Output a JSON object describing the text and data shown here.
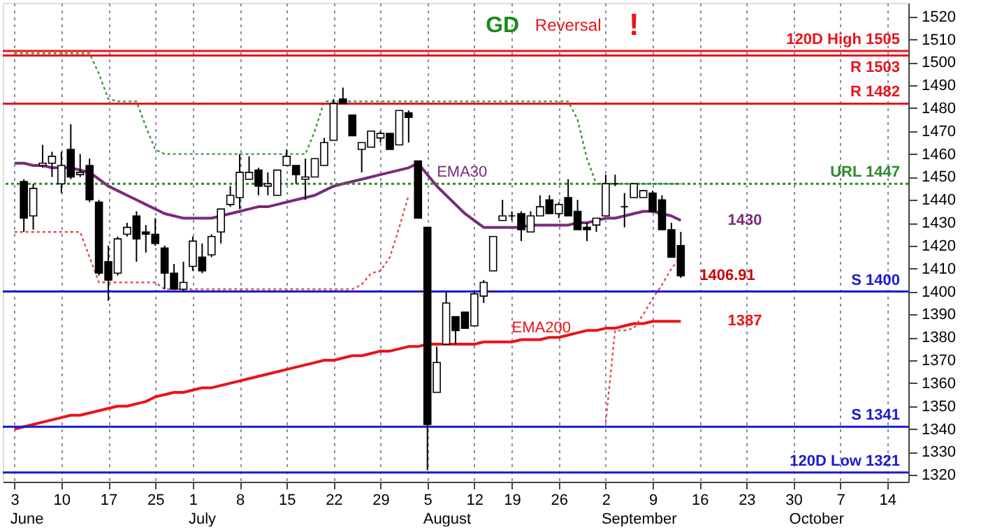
{
  "chart_data": {
    "type": "candlestick",
    "categories": [
      "3",
      null,
      null,
      null,
      null,
      "10",
      null,
      null,
      null,
      null,
      "17",
      null,
      null,
      null,
      null,
      "25",
      null,
      null,
      null,
      "1",
      null,
      null,
      null,
      null,
      "8",
      null,
      null,
      null,
      null,
      "15",
      null,
      null,
      null,
      null,
      "22",
      null,
      null,
      null,
      null,
      "29",
      null,
      null,
      null,
      null,
      "5",
      null,
      null,
      null,
      null,
      "12",
      null,
      null,
      null,
      "19",
      null,
      null,
      null,
      null,
      "26",
      null,
      null,
      null,
      null,
      "2",
      null,
      null,
      null,
      null,
      "9",
      null,
      null,
      null,
      null,
      "16",
      null,
      null,
      null,
      null,
      "23",
      null,
      null,
      null,
      null,
      "30",
      null,
      null,
      null,
      null,
      "7",
      null,
      null,
      null,
      null,
      "14",
      null
    ],
    "ohlc": [
      null,
      [
        1448,
        1449,
        1426,
        1432
      ],
      [
        1433,
        1447,
        1427,
        1445
      ],
      [
        1455,
        1464,
        1454,
        1456
      ],
      [
        1456,
        1461,
        1450,
        1459
      ],
      [
        1447,
        1461,
        1443,
        1455
      ],
      [
        1462,
        1473,
        1449,
        1450
      ],
      [
        1451,
        1460,
        1450,
        1452
      ],
      [
        1455,
        1458,
        1439,
        1440
      ],
      [
        1439,
        1440,
        1407,
        1408
      ],
      [
        1413,
        1420,
        1396,
        1405
      ],
      [
        1408,
        1424,
        1407,
        1423
      ],
      [
        1425,
        1430,
        1424,
        1428
      ],
      [
        1433,
        1435,
        1413,
        1423
      ],
      [
        1426,
        1429,
        1417,
        1425
      ],
      [
        1425,
        1432,
        1420,
        1421
      ],
      [
        1419,
        1420,
        1401,
        1408
      ],
      [
        1408,
        1412,
        1401,
        1401
      ],
      [
        1401,
        1413,
        1400,
        1404
      ],
      [
        1411,
        1424,
        1409,
        1422
      ],
      [
        1415,
        1421,
        1408,
        1409
      ],
      [
        1416,
        1425,
        1415,
        1424
      ],
      [
        1426,
        1436,
        1421,
        1436
      ],
      [
        1438,
        1446,
        1437,
        1442
      ],
      [
        1441,
        1460,
        1436,
        1452
      ],
      [
        1449,
        1459,
        1449,
        1452
      ],
      [
        1453,
        1454,
        1442,
        1446
      ],
      [
        1446,
        1452,
        1442,
        1447
      ],
      [
        1442,
        1453,
        1442,
        1453
      ],
      [
        1455,
        1462,
        1455,
        1459
      ],
      [
        1455,
        1455,
        1447,
        1451
      ],
      [
        1449,
        1458,
        1440,
        1450
      ],
      [
        1450,
        1458,
        1450,
        1458
      ],
      [
        1455,
        1467,
        1455,
        1465
      ],
      [
        1466,
        1484,
        1466,
        1482
      ],
      [
        1484,
        1489,
        1482,
        1482
      ],
      [
        1477,
        1477,
        1468,
        1468
      ],
      [
        1462,
        1465,
        1452,
        1465
      ],
      [
        1463,
        1470,
        1463,
        1470
      ],
      [
        1467,
        1470,
        1465,
        1469
      ],
      [
        1469,
        1469,
        1462,
        1462
      ],
      [
        1464,
        1479,
        1464,
        1479
      ],
      [
        1478,
        1479,
        1465,
        1476
      ],
      [
        1457,
        1457,
        1432,
        1432
      ],
      [
        1428,
        1428,
        1322,
        1342
      ],
      [
        1356,
        1376,
        1356,
        1369
      ],
      [
        1377,
        1400,
        1377,
        1395
      ],
      [
        1389,
        1389,
        1377,
        1383
      ],
      [
        1391,
        1391,
        1384,
        1384
      ],
      [
        1385,
        1400,
        1385,
        1399
      ],
      [
        1398,
        1405,
        1395,
        1404
      ],
      [
        1409,
        1424,
        1409,
        1424
      ],
      [
        1431,
        1440,
        1431,
        1433
      ],
      [
        1433,
        1435,
        1431,
        1433
      ],
      [
        1434,
        1435,
        1422,
        1427
      ],
      [
        1426,
        1435,
        1426,
        1433
      ],
      [
        1433,
        1442,
        1433,
        1437
      ],
      [
        1440,
        1442,
        1434,
        1434
      ],
      [
        1434,
        1439,
        1432,
        1438
      ],
      [
        1441,
        1449,
        1433,
        1433
      ],
      [
        1435,
        1440,
        1427,
        1427
      ],
      [
        1428,
        1430,
        1422,
        1427
      ],
      [
        1429,
        1432,
        1426,
        1432
      ],
      [
        1433,
        1451,
        1433,
        1447
      ],
      [
        1447,
        1451,
        1446,
        1447
      ],
      [
        1437,
        1443,
        1428,
        1437
      ],
      [
        1441,
        1447,
        1441,
        1447
      ],
      [
        1441,
        1444,
        1441,
        1444
      ],
      [
        1443,
        1444,
        1435,
        1435
      ],
      [
        1440,
        1442,
        1427,
        1427
      ],
      [
        1427,
        1430,
        1415,
        1415
      ],
      [
        1420,
        1426,
        1406,
        1406.91
      ],
      null,
      null,
      null,
      null,
      null,
      null,
      null,
      null,
      null,
      null,
      null,
      null,
      null,
      null,
      null,
      null,
      null,
      null,
      null,
      null,
      null,
      null,
      null
    ],
    "series": [
      {
        "name": "EMA30",
        "type": "line",
        "color": "#7b2a7b",
        "line_style": "solid",
        "values": [
          1456,
          1456,
          1455,
          1455,
          1454,
          1454,
          1454,
          1453,
          1452,
          1449,
          1446,
          1444,
          1442,
          1440,
          1438,
          1436,
          1434,
          1433,
          1432,
          1432,
          1432,
          1432,
          1433,
          1434,
          1435,
          1436,
          1437,
          1437,
          1438,
          1439,
          1440,
          1441,
          1442,
          1444,
          1446,
          1447,
          1448,
          1449,
          1450,
          1451,
          1452,
          1453,
          1454,
          1456,
          1451,
          1446,
          1442,
          1438,
          1434,
          1431,
          1428,
          1428,
          1428,
          1428,
          1428,
          1429,
          1429,
          1429,
          1429,
          1429,
          1430,
          1430,
          1431,
          1432,
          1432,
          1433,
          1434,
          1435,
          1435,
          1434,
          1433,
          1431,
          null,
          null,
          null,
          null,
          null,
          null,
          null,
          null,
          null,
          null,
          null,
          null,
          null,
          null,
          null,
          null,
          null,
          null,
          null,
          null,
          null,
          null,
          null
        ]
      },
      {
        "name": "EMA200",
        "type": "line",
        "color": "#e8141b",
        "line_style": "solid",
        "values": [
          1340,
          1341,
          1342,
          1343,
          1344,
          1345,
          1346,
          1346,
          1347,
          1348,
          1349,
          1350,
          1350,
          1351,
          1352,
          1354,
          1355,
          1356,
          1356,
          1357,
          1358,
          1358,
          1359,
          1360,
          1361,
          1362,
          1363,
          1364,
          1365,
          1366,
          1367,
          1368,
          1369,
          1370,
          1370,
          1371,
          1372,
          1372,
          1373,
          1374,
          1374,
          1375,
          1376,
          1376,
          1377,
          1377,
          1377,
          1377,
          1377,
          1377,
          1378,
          1378,
          1378,
          1378,
          1379,
          1379,
          1379,
          1380,
          1380,
          1381,
          1382,
          1383,
          1383,
          1384,
          1384,
          1385,
          1386,
          1386,
          1387,
          1387,
          1387,
          1387,
          null,
          null,
          null,
          null,
          null,
          null,
          null,
          null,
          null,
          null,
          null,
          null,
          null,
          null,
          null,
          null,
          null,
          null,
          null,
          null,
          null,
          null,
          null
        ]
      },
      {
        "type": "line",
        "color": "#3a9a3a",
        "line_style": "dotted",
        "values": [
          1504,
          1504,
          1504,
          1504,
          1504,
          1504,
          1504,
          1504,
          1504,
          1495,
          1484,
          1483,
          1483,
          1483,
          1472,
          1462,
          1460,
          1460,
          1460,
          1460,
          1460,
          1460,
          1460,
          1460,
          1460,
          1460,
          1460,
          1460,
          1460,
          1460,
          1460,
          1460,
          1470,
          1483,
          1483,
          1483,
          1483,
          1483,
          1483,
          1483,
          1483,
          1483,
          1483,
          1483,
          1483,
          1483,
          1483,
          1483,
          1483,
          1483,
          1483,
          1483,
          1483,
          1483,
          1483,
          1483,
          1483,
          1483,
          1483,
          1483,
          1475,
          1458,
          1447,
          1447,
          1447,
          1447,
          1447,
          1447,
          1447,
          1447,
          1447,
          1447,
          null,
          null,
          null,
          null,
          null,
          null,
          null,
          null,
          null,
          null,
          null,
          null,
          null,
          null,
          null,
          null,
          null,
          null,
          null,
          null,
          null,
          null,
          null
        ]
      },
      {
        "type": "line",
        "color": "#e05050",
        "line_style": "dotted",
        "values": [
          1426,
          1426,
          1426,
          1426,
          1426,
          1426,
          1426,
          1426,
          1415,
          1404,
          1404,
          1404,
          1404,
          1404,
          1404,
          1404,
          1401,
          1401,
          1401,
          1401,
          1401,
          1401,
          1401,
          1401,
          1401,
          1401,
          1401,
          1401,
          1401,
          1401,
          1401,
          1401,
          1401,
          1401,
          1401,
          1401,
          1401,
          1403,
          1408,
          1409,
          1415,
          1428,
          1442,
          null,
          null,
          null,
          null,
          null,
          null,
          null,
          null,
          null,
          null,
          null,
          null,
          null,
          null,
          null,
          null,
          null,
          null,
          null,
          null,
          1343,
          1383,
          1383,
          1384,
          1390,
          1397,
          1403,
          1410,
          1415,
          null,
          null,
          null,
          null,
          null,
          null,
          null,
          null,
          null,
          null,
          null,
          null,
          null,
          null,
          null,
          null,
          null,
          null,
          null,
          null,
          null,
          null,
          null
        ]
      }
    ],
    "ylim": [
      1317,
      1526
    ],
    "yticks": [
      1320,
      1330,
      1340,
      1350,
      1360,
      1370,
      1380,
      1390,
      1400,
      1410,
      1420,
      1430,
      1440,
      1450,
      1460,
      1470,
      1480,
      1490,
      1500,
      1510,
      1520
    ],
    "grid": "x",
    "ref_lines": [
      {
        "axis": "y",
        "value": 1505,
        "label": "120D High 1505",
        "color": "#e8141b",
        "line_style": "solid"
      },
      {
        "axis": "y",
        "value": 1503,
        "label": "R 1503",
        "color": "#e8141b",
        "line_style": "solid"
      },
      {
        "axis": "y",
        "value": 1482,
        "label": "R 1482",
        "color": "#e8141b",
        "line_style": "solid"
      },
      {
        "axis": "y",
        "value": 1447,
        "label": "URL 1447",
        "color": "#2e8b2e",
        "line_style": "dotted"
      },
      {
        "axis": "y",
        "value": 1400,
        "label": "S 1400",
        "color": "#1a1ad0",
        "line_style": "solid"
      },
      {
        "axis": "y",
        "value": 1341,
        "label": "S 1341",
        "color": "#1a1ad0",
        "line_style": "solid"
      },
      {
        "axis": "y",
        "value": 1321,
        "label": "120D Low 1321",
        "color": "#1a1ad0",
        "line_style": "solid"
      }
    ],
    "annotations": [
      "GD",
      "Reversal",
      "!",
      "1430",
      "1387",
      "1406.91",
      "June",
      "July",
      "August",
      "September",
      "October"
    ]
  }
}
